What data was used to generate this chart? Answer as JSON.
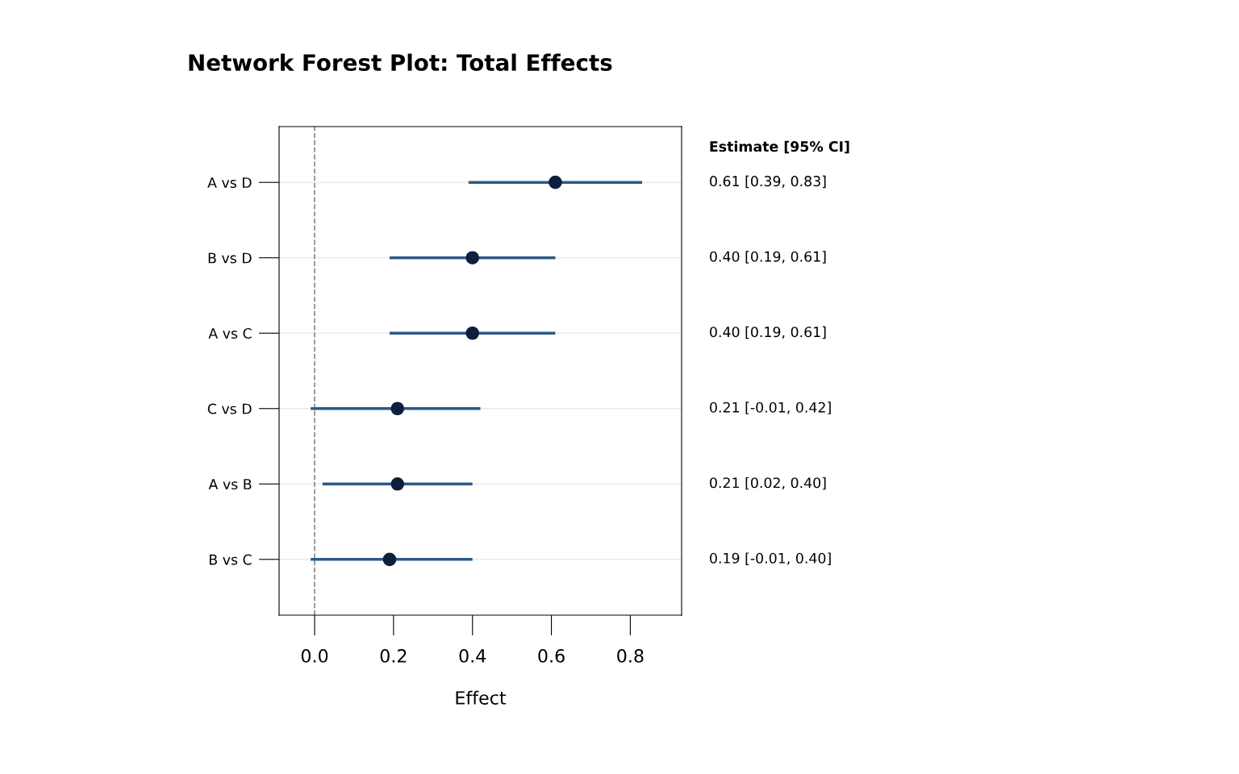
{
  "chart_data": {
    "type": "scatter",
    "orientation": "horizontal",
    "title": "Network Forest Plot: Total Effects",
    "xlabel": "Effect",
    "categories": [
      "A vs D",
      "B vs D",
      "A vs C",
      "C vs D",
      "A vs B",
      "B vs C"
    ],
    "series": [
      {
        "color": "#0d1f3c",
        "values": [
          0.61,
          0.4,
          0.4,
          0.21,
          0.21,
          0.19
        ],
        "errors": [
          [
            0.39,
            0.83
          ],
          [
            0.19,
            0.61
          ],
          [
            0.19,
            0.61
          ],
          [
            -0.01,
            0.42
          ],
          [
            0.02,
            0.4
          ],
          [
            -0.01,
            0.4
          ]
        ],
        "value_labels": [
          "0.61 [0.39, 0.83]",
          "0.40 [0.19, 0.61]",
          "0.40 [0.19, 0.61]",
          "0.21 [-0.01, 0.42]",
          "0.21 [0.02, 0.40]",
          "0.19 [-0.01, 0.40]"
        ]
      }
    ],
    "annotations": [
      "Estimate [95% CI]"
    ],
    "xlim": [
      -0.09,
      0.93
    ],
    "xticks": [
      {
        "value": 0,
        "label": "0.0"
      },
      0.2,
      0.4,
      0.6,
      0.8
    ],
    "ref_lines": [
      {
        "axis": "x",
        "value": 0,
        "color": "#888888",
        "line_style": "dashed"
      }
    ],
    "grid": "y",
    "marker": "circle",
    "legend": false
  }
}
